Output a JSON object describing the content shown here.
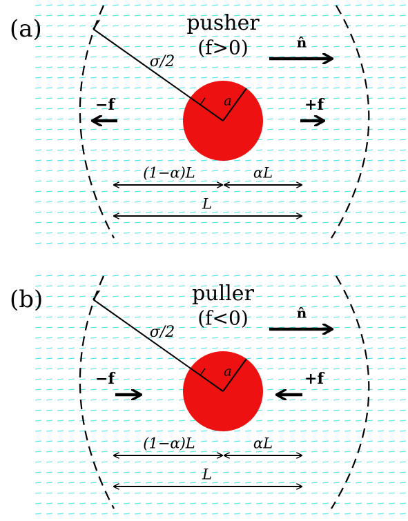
{
  "panels": [
    {
      "label": "(a)",
      "title": "pusher",
      "condition": "(f>0)",
      "direction": "n̂",
      "left_force": "−f",
      "right_force": "+f",
      "radius_outer": "σ/2",
      "radius_inner": "a",
      "segment_left": "(1−α)L",
      "segment_right": "αL",
      "segment_total": "L"
    },
    {
      "label": "(b)",
      "title": "puller",
      "condition": "(f<0)",
      "direction": "n̂",
      "left_force": "−f",
      "right_force": "+f",
      "radius_outer": "σ/2",
      "radius_inner": "a",
      "segment_left": "(1−α)L",
      "segment_right": "αL",
      "segment_total": "L"
    }
  ]
}
